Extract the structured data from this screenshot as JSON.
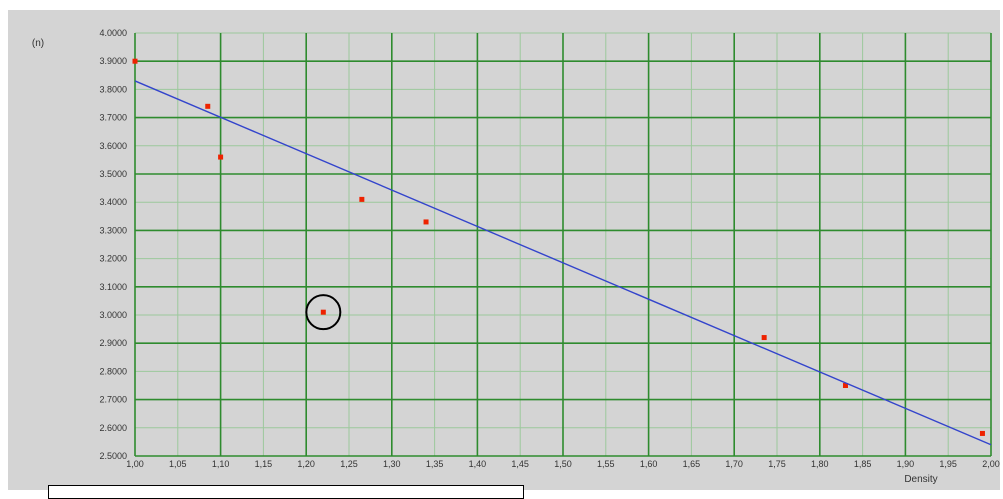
{
  "chart_data": {
    "type": "scatter",
    "title": "",
    "xlabel": "Density",
    "ylabel": "(n)",
    "xlim": [
      1.0,
      2.0
    ],
    "ylim": [
      2.5,
      4.0
    ],
    "x_ticks": [
      {
        "v": 1.0,
        "label": "1,00"
      },
      {
        "v": 1.05,
        "label": "1,05"
      },
      {
        "v": 1.1,
        "label": "1,10"
      },
      {
        "v": 1.15,
        "label": "1,15"
      },
      {
        "v": 1.2,
        "label": "1,20"
      },
      {
        "v": 1.25,
        "label": "1,25"
      },
      {
        "v": 1.3,
        "label": "1,30"
      },
      {
        "v": 1.35,
        "label": "1,35"
      },
      {
        "v": 1.4,
        "label": "1,40"
      },
      {
        "v": 1.45,
        "label": "1,45"
      },
      {
        "v": 1.5,
        "label": "1,50"
      },
      {
        "v": 1.55,
        "label": "1,55"
      },
      {
        "v": 1.6,
        "label": "1,60"
      },
      {
        "v": 1.65,
        "label": "1,65"
      },
      {
        "v": 1.7,
        "label": "1,70"
      },
      {
        "v": 1.75,
        "label": "1,75"
      },
      {
        "v": 1.8,
        "label": "1,80"
      },
      {
        "v": 1.85,
        "label": "1,85"
      },
      {
        "v": 1.9,
        "label": "1,90"
      },
      {
        "v": 1.95,
        "label": "1,95"
      },
      {
        "v": 2.0,
        "label": "2,00"
      }
    ],
    "y_ticks": [
      {
        "v": 2.5,
        "label": "2.5000"
      },
      {
        "v": 2.6,
        "label": "2.6000"
      },
      {
        "v": 2.7,
        "label": "2.7000"
      },
      {
        "v": 2.8,
        "label": "2.8000"
      },
      {
        "v": 2.9,
        "label": "2.9000"
      },
      {
        "v": 3.0,
        "label": "3.0000"
      },
      {
        "v": 3.1,
        "label": "3.1000"
      },
      {
        "v": 3.2,
        "label": "3.2000"
      },
      {
        "v": 3.3,
        "label": "3.3000"
      },
      {
        "v": 3.4,
        "label": "3.4000"
      },
      {
        "v": 3.5,
        "label": "3.5000"
      },
      {
        "v": 3.6,
        "label": "3.6000"
      },
      {
        "v": 3.7,
        "label": "3.7000"
      },
      {
        "v": 3.8,
        "label": "3.8000"
      },
      {
        "v": 3.9,
        "label": "3.9000"
      },
      {
        "v": 4.0,
        "label": "4.0000"
      }
    ],
    "series": [
      {
        "type": "scatter",
        "color": "#ee2200",
        "points": [
          {
            "x": 1.0,
            "y": 3.9
          },
          {
            "x": 1.085,
            "y": 3.74
          },
          {
            "x": 1.1,
            "y": 3.56
          },
          {
            "x": 1.265,
            "y": 3.41
          },
          {
            "x": 1.34,
            "y": 3.33
          },
          {
            "x": 1.22,
            "y": 3.01
          },
          {
            "x": 1.735,
            "y": 2.92
          },
          {
            "x": 1.83,
            "y": 2.75
          },
          {
            "x": 1.99,
            "y": 2.58
          }
        ]
      },
      {
        "type": "line",
        "color": "#3344cc",
        "points": [
          {
            "x": 1.0,
            "y": 3.83
          },
          {
            "x": 2.0,
            "y": 2.54
          }
        ]
      }
    ],
    "annotations": [
      {
        "type": "circle",
        "x": 1.22,
        "y": 3.01,
        "color": "#000000"
      }
    ],
    "colors": {
      "plot_background": "#d4d4d4",
      "major_grid": "#2e8b2e",
      "minor_grid": "#9cc89c",
      "frame": "#ffffff"
    },
    "grid": true,
    "legend": "none"
  }
}
